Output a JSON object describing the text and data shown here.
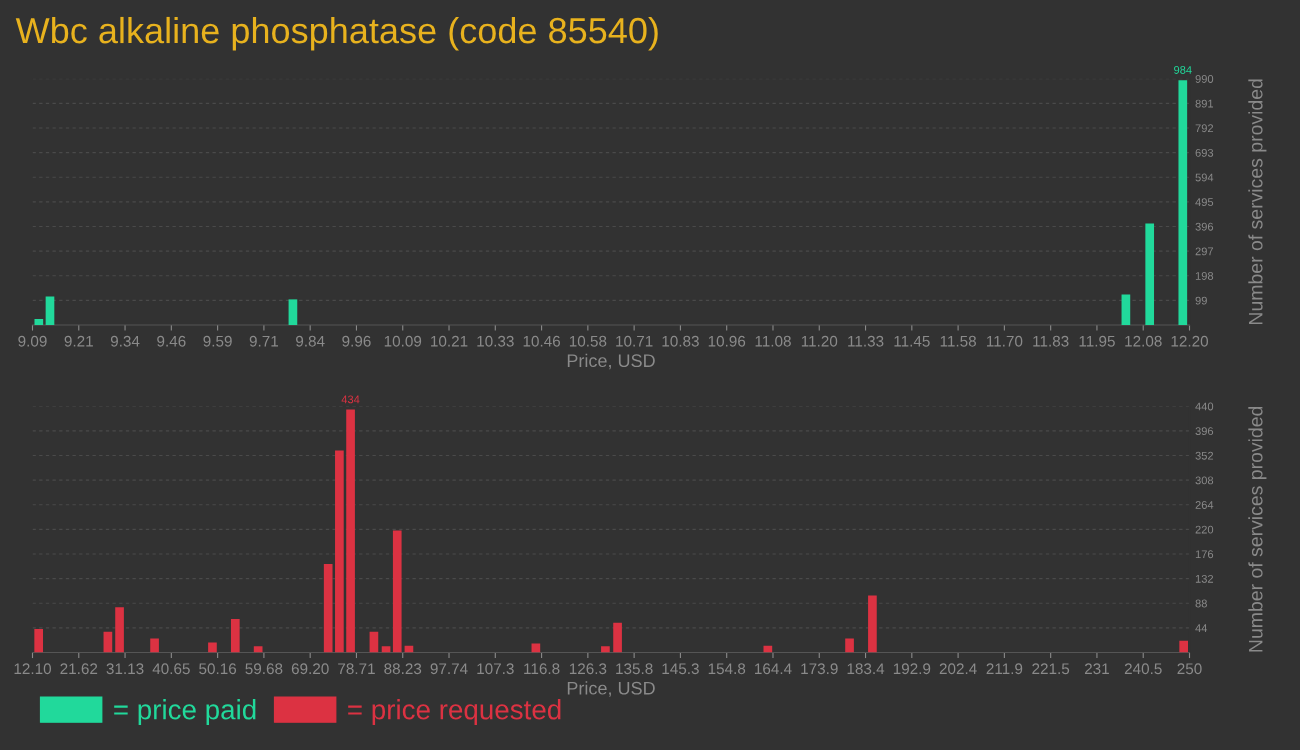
{
  "chart_data": [
    {
      "type": "bar",
      "title": "Wbc alkaline phosphatase (code 85540)",
      "xlabel": "Price, USD",
      "ylabel": "Number of services provided",
      "x": [
        9.107,
        9.137,
        9.79,
        12.029,
        12.093,
        12.182
      ],
      "series": [
        {
          "name": "= price paid",
          "color": "#21d99b",
          "values": [
            24,
            115,
            103,
            123,
            408,
            984
          ],
          "value_labels": [
            null,
            null,
            null,
            null,
            null,
            "984"
          ]
        }
      ],
      "xlim": [
        9.09,
        12.2
      ],
      "xticks": [
        {
          "value": 9.09,
          "label": "9.09"
        },
        {
          "value": 9.2144,
          "label": "9.21"
        },
        {
          "value": 9.3388,
          "label": "9.34"
        },
        {
          "value": 9.4632,
          "label": "9.46"
        },
        {
          "value": 9.5876,
          "label": "9.59"
        },
        {
          "value": 9.712,
          "label": "9.71"
        },
        {
          "value": 9.8364,
          "label": "9.84"
        },
        {
          "value": 9.9608,
          "label": "9.96"
        },
        {
          "value": 10.0852,
          "label": "10.09"
        },
        {
          "value": 10.2096,
          "label": "10.21"
        },
        {
          "value": 10.334,
          "label": "10.33"
        },
        {
          "value": 10.4584,
          "label": "10.46"
        },
        {
          "value": 10.5828,
          "label": "10.58"
        },
        {
          "value": 10.7072,
          "label": "10.71"
        },
        {
          "value": 10.8316,
          "label": "10.83"
        },
        {
          "value": 10.956,
          "label": "10.96"
        },
        {
          "value": 11.0804,
          "label": "11.08"
        },
        {
          "value": 11.2048,
          "label": "11.20"
        },
        {
          "value": 11.3292,
          "label": "11.33"
        },
        {
          "value": 11.4536,
          "label": "11.45"
        },
        {
          "value": 11.578,
          "label": "11.58"
        },
        {
          "value": 11.7024,
          "label": "11.70"
        },
        {
          "value": 11.8268,
          "label": "11.83"
        },
        {
          "value": 11.9512,
          "label": "11.95"
        },
        {
          "value": 12.0756,
          "label": "12.08"
        },
        {
          "value": 12.2,
          "label": "12.20"
        }
      ],
      "ylim": [
        0,
        990
      ],
      "yticks": [
        99,
        198,
        297,
        396,
        495,
        594,
        693,
        792,
        891,
        990
      ],
      "grid": "y",
      "legend": "bottom"
    },
    {
      "type": "bar",
      "xlabel": "Price, USD",
      "ylabel": "Number of services provided",
      "x": [
        13.37,
        27.6,
        30.0,
        37.2,
        49.1,
        53.8,
        58.5,
        72.9,
        75.2,
        77.5,
        82.3,
        84.8,
        87.1,
        89.5,
        115.6,
        129.9,
        132.4,
        163.3,
        180.1,
        184.8,
        248.8
      ],
      "series": [
        {
          "name": "= price requested",
          "color": "#dc3242",
          "values": [
            42,
            37,
            81,
            25,
            18,
            60,
            11,
            158,
            361,
            434,
            37,
            11,
            218,
            12,
            16,
            11,
            53,
            12,
            25,
            102,
            21
          ],
          "value_labels": [
            null,
            null,
            null,
            null,
            null,
            null,
            null,
            null,
            null,
            "434",
            null,
            null,
            null,
            null,
            null,
            null,
            null,
            null,
            null,
            null,
            null
          ]
        }
      ],
      "xlim": [
        12.1,
        250
      ],
      "xticks": [
        {
          "value": 12.1,
          "label": "12.10"
        },
        {
          "value": 21.616,
          "label": "21.62"
        },
        {
          "value": 31.132,
          "label": "31.13"
        },
        {
          "value": 40.648,
          "label": "40.65"
        },
        {
          "value": 50.164,
          "label": "50.16"
        },
        {
          "value": 59.68,
          "label": "59.68"
        },
        {
          "value": 69.196,
          "label": "69.20"
        },
        {
          "value": 78.712,
          "label": "78.71"
        },
        {
          "value": 88.228,
          "label": "88.23"
        },
        {
          "value": 97.744,
          "label": "97.74"
        },
        {
          "value": 107.26,
          "label": "107.3"
        },
        {
          "value": 116.776,
          "label": "116.8"
        },
        {
          "value": 126.292,
          "label": "126.3"
        },
        {
          "value": 135.808,
          "label": "135.8"
        },
        {
          "value": 145.324,
          "label": "145.3"
        },
        {
          "value": 154.84,
          "label": "154.8"
        },
        {
          "value": 164.356,
          "label": "164.4"
        },
        {
          "value": 173.872,
          "label": "173.9"
        },
        {
          "value": 183.388,
          "label": "183.4"
        },
        {
          "value": 192.904,
          "label": "192.9"
        },
        {
          "value": 202.42,
          "label": "202.4"
        },
        {
          "value": 211.936,
          "label": "211.9"
        },
        {
          "value": 221.452,
          "label": "221.5"
        },
        {
          "value": 230.968,
          "label": "231"
        },
        {
          "value": 240.484,
          "label": "240.5"
        },
        {
          "value": 250,
          "label": "250"
        }
      ],
      "ylim": [
        0,
        440
      ],
      "yticks": [
        44,
        88,
        132,
        176,
        220,
        264,
        308,
        352,
        396,
        440
      ],
      "grid": "y",
      "legend": "bottom"
    }
  ]
}
